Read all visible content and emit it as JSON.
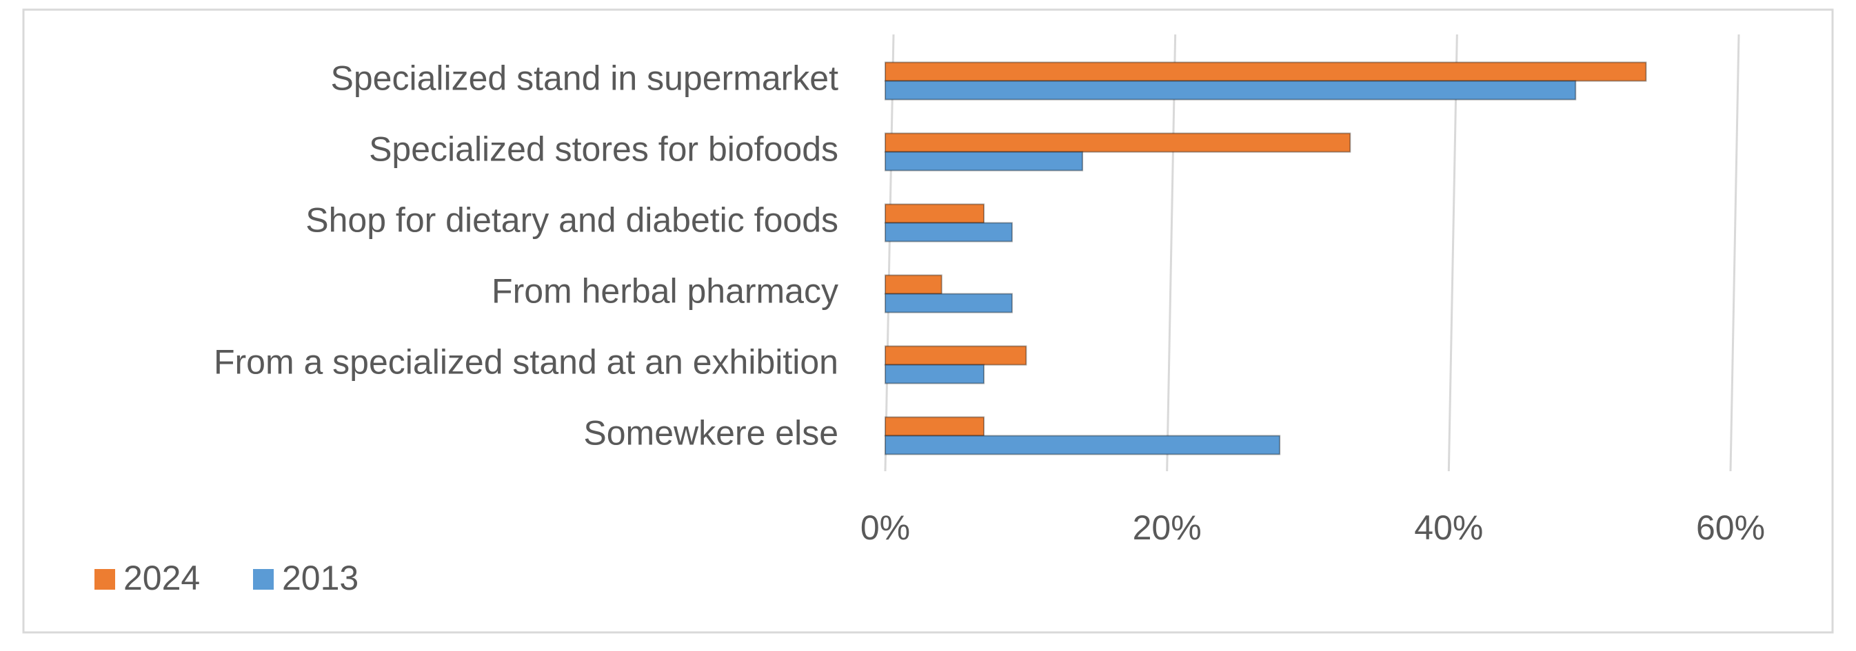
{
  "chart_data": {
    "type": "bar",
    "orientation": "horizontal",
    "categories": [
      "Specialized stand in supermarket",
      "Specialized stores for biofoods",
      "Shop for dietary and diabetic foods",
      "From herbal pharmacy",
      "From a specialized stand at an exhibition",
      "Somewkere else"
    ],
    "series": [
      {
        "name": "2024",
        "color": "#ED7D31",
        "values": [
          54,
          33,
          7,
          4,
          10,
          7
        ]
      },
      {
        "name": "2013",
        "color": "#5B9BD5",
        "values": [
          49,
          14,
          9,
          9,
          7,
          28
        ]
      }
    ],
    "xlim": [
      0,
      60
    ],
    "xticks": [
      {
        "value": 0,
        "label": "0%"
      },
      {
        "value": 20,
        "label": "20%"
      },
      {
        "value": 40,
        "label": "40%"
      },
      {
        "value": 60,
        "label": "60%"
      }
    ],
    "grid": true
  }
}
